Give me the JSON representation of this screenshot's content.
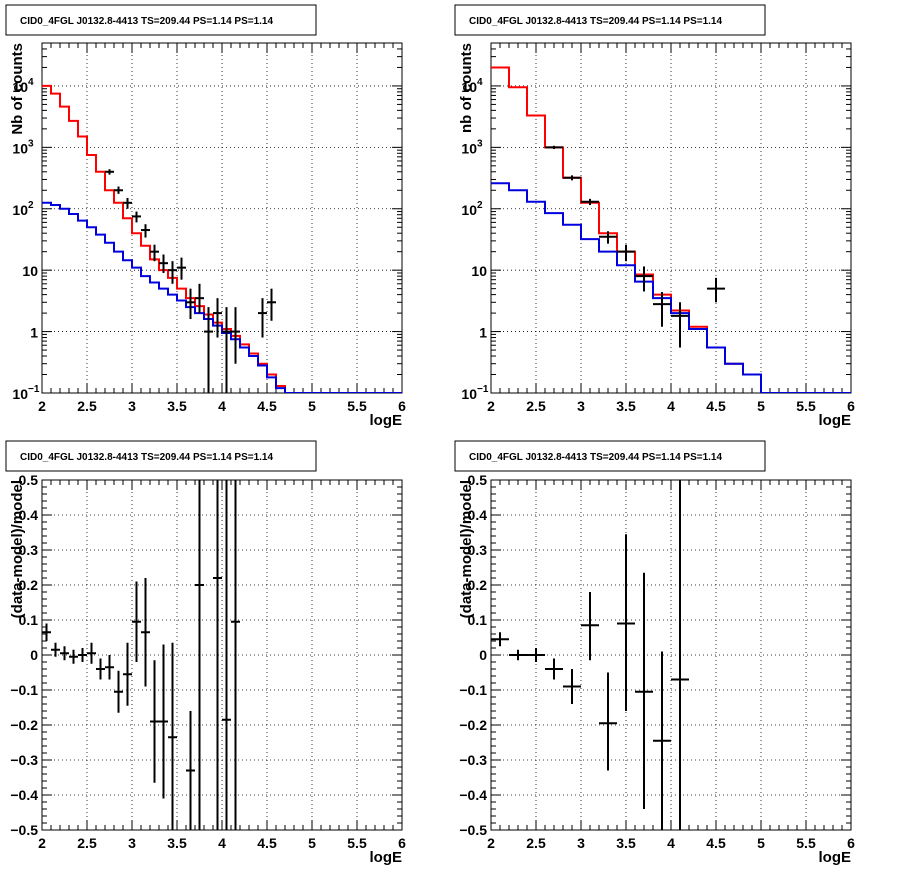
{
  "chart_data": [
    {
      "type": "line",
      "title": "CID0_4FGL J0132.8-4413 TS=209.44 PS=1.14 PS=1.14",
      "xlabel": "logE",
      "ylabel": "Nb of counts",
      "xlim": [
        2,
        6
      ],
      "ylim": [
        0.1,
        50000
      ],
      "yscale": "log",
      "grid": true,
      "x_ticks": [
        "2",
        "2.5",
        "3",
        "3.5",
        "4",
        "4.5",
        "5",
        "5.5",
        "6"
      ],
      "y_ticks": [
        {
          "value": 0.1,
          "label": "10",
          "exp": "−1"
        },
        {
          "value": 1,
          "label": "1",
          "exp": ""
        },
        {
          "value": 10,
          "label": "10",
          "exp": ""
        },
        {
          "value": 100,
          "label": "10",
          "exp": "2"
        },
        {
          "value": 1000,
          "label": "10",
          "exp": "3"
        },
        {
          "value": 10000,
          "label": "10",
          "exp": "4"
        }
      ],
      "step_x": [
        2.0,
        2.1,
        2.2,
        2.3,
        2.4,
        2.5,
        2.6,
        2.7,
        2.8,
        2.9,
        3.0,
        3.1,
        3.2,
        3.3,
        3.4,
        3.5,
        3.6,
        3.7,
        3.8,
        3.9,
        4.0,
        4.1,
        4.2,
        4.3,
        4.4,
        4.5,
        4.6,
        4.7,
        4.8,
        4.9,
        5.0,
        5.1,
        5.2,
        5.3,
        5.4,
        5.5,
        5.6,
        5.7,
        5.8,
        5.9,
        6.0
      ],
      "series": [
        {
          "color": "#ff0000",
          "kind": "step",
          "values": [
            10000,
            7500,
            4600,
            2700,
            1500,
            750,
            400,
            200,
            125,
            70,
            40,
            25,
            15,
            10,
            7.5,
            5,
            3.5,
            2.6,
            1.9,
            1.4,
            1.1,
            0.85,
            0.62,
            0.44,
            0.3,
            0.2,
            0.13,
            0.1,
            0.1,
            0.1,
            0.1,
            0.1,
            0.1,
            0.1,
            0.1,
            0.1,
            0.1,
            0.1,
            0.1,
            0.1
          ]
        },
        {
          "color": "#0000dd",
          "kind": "step",
          "values": [
            125,
            115,
            100,
            82,
            64,
            50,
            38,
            28,
            20,
            14.5,
            11,
            8,
            6.3,
            5,
            4,
            3.2,
            2.5,
            2,
            1.6,
            1.25,
            0.95,
            0.75,
            0.55,
            0.4,
            0.28,
            0.18,
            0.12,
            0.1,
            0.1,
            0.1,
            0.1,
            0.1,
            0.1,
            0.1,
            0.1,
            0.1,
            0.1,
            0.1,
            0.1,
            0.1
          ]
        },
        {
          "color": "#000000",
          "kind": "points",
          "xerr": 0.05,
          "x": [
            2.75,
            2.85,
            2.95,
            3.05,
            3.15,
            3.25,
            3.35,
            3.45,
            3.55,
            3.65,
            3.75,
            3.85,
            3.95,
            4.05,
            4.15,
            4.45,
            4.55
          ],
          "y": [
            400,
            200,
            125,
            75,
            45,
            20,
            13,
            10,
            11,
            3,
            3.5,
            1,
            2,
            1,
            1,
            2,
            3
          ],
          "lo": [
            360,
            175,
            100,
            60,
            34,
            14,
            9,
            6,
            7,
            1.6,
            2,
            0.1,
            0.8,
            0.1,
            0.3,
            0.8,
            1.5
          ],
          "hi": [
            440,
            230,
            150,
            90,
            56,
            26,
            18,
            14,
            16,
            5,
            6,
            2.5,
            3.5,
            2.5,
            2.5,
            3.5,
            5
          ]
        }
      ]
    },
    {
      "type": "line",
      "title": "CID0_4FGL J0132.8-4413 TS=209.44 PS=1.14 PS=1.14",
      "xlabel": "logE",
      "ylabel": "nb of counts",
      "xlim": [
        2,
        6
      ],
      "ylim": [
        0.1,
        50000
      ],
      "yscale": "log",
      "grid": true,
      "x_ticks": [
        "2",
        "2.5",
        "3",
        "3.5",
        "4",
        "4.5",
        "5",
        "5.5",
        "6"
      ],
      "y_ticks": [
        {
          "value": 0.1,
          "label": "10",
          "exp": "−1"
        },
        {
          "value": 1,
          "label": "1",
          "exp": ""
        },
        {
          "value": 10,
          "label": "10",
          "exp": ""
        },
        {
          "value": 100,
          "label": "10",
          "exp": "2"
        },
        {
          "value": 1000,
          "label": "10",
          "exp": "3"
        },
        {
          "value": 10000,
          "label": "10",
          "exp": "4"
        }
      ],
      "step_x": [
        2.0,
        2.2,
        2.4,
        2.6,
        2.8,
        3.0,
        3.2,
        3.4,
        3.6,
        3.8,
        4.0,
        4.2,
        4.4,
        4.6,
        4.8,
        5.0,
        5.2,
        5.4,
        5.6,
        5.8,
        6.0
      ],
      "series": [
        {
          "color": "#ff0000",
          "kind": "step",
          "values": [
            20000,
            9500,
            3300,
            1000,
            320,
            125,
            40,
            20,
            8.5,
            4,
            2.2,
            1.2,
            0.55,
            0.3,
            0.2,
            0.1,
            0.1,
            0.1,
            0.1,
            0.1
          ]
        },
        {
          "color": "#0000dd",
          "kind": "step",
          "values": [
            260,
            200,
            130,
            85,
            55,
            32,
            20,
            12,
            6.5,
            3.5,
            2,
            1.1,
            0.55,
            0.3,
            0.2,
            0.1,
            0.1,
            0.1,
            0.1,
            0.1
          ]
        },
        {
          "color": "#000000",
          "kind": "points",
          "xerr": 0.1,
          "x": [
            2.7,
            2.9,
            3.1,
            3.3,
            3.5,
            3.7,
            3.9,
            4.1,
            4.5
          ],
          "y": [
            1000,
            320,
            130,
            35,
            20,
            8,
            2.8,
            1.8,
            5
          ],
          "lo": [
            940,
            290,
            115,
            27,
            14,
            4.5,
            1.2,
            0.55,
            3
          ],
          "hi": [
            1060,
            350,
            145,
            43,
            26,
            11.5,
            4.4,
            3,
            7.5
          ]
        }
      ]
    },
    {
      "type": "scatter",
      "title": "CID0_4FGL J0132.8-4413 TS=209.44 PS=1.14 PS=1.14",
      "xlabel": "logE",
      "ylabel": "(data-model)/model",
      "xlim": [
        2,
        6
      ],
      "ylim": [
        -0.5,
        0.5
      ],
      "grid": true,
      "x_ticks": [
        "2",
        "2.5",
        "3",
        "3.5",
        "4",
        "4.5",
        "5",
        "5.5",
        "6"
      ],
      "y_ticks": [
        "−0.5",
        "−0.4",
        "−0.3",
        "−0.2",
        "−0.1",
        "0",
        "0.1",
        "0.2",
        "0.3",
        "0.4",
        "0.5"
      ],
      "series": [
        {
          "color": "#000000",
          "kind": "points",
          "xerr": 0.05,
          "x": [
            2.05,
            2.15,
            2.25,
            2.35,
            2.45,
            2.55,
            2.65,
            2.75,
            2.85,
            2.95,
            3.05,
            3.15,
            3.25,
            3.35,
            3.45,
            3.65,
            3.75,
            3.95,
            4.05,
            4.15
          ],
          "y": [
            0.065,
            0.015,
            0.005,
            -0.005,
            0.0,
            0.005,
            -0.04,
            -0.035,
            -0.105,
            -0.055,
            0.095,
            0.065,
            -0.19,
            -0.19,
            -0.235,
            -0.33,
            0.2,
            0.22,
            -0.185,
            0.095
          ],
          "lo": [
            0.04,
            -0.005,
            -0.015,
            -0.025,
            -0.02,
            -0.025,
            -0.07,
            -0.07,
            -0.165,
            -0.145,
            -0.02,
            -0.09,
            -0.365,
            -0.41,
            -0.5,
            -0.5,
            -0.5,
            -0.5,
            -0.5,
            -0.5
          ],
          "hi": [
            0.09,
            0.035,
            0.025,
            0.015,
            0.02,
            0.035,
            -0.01,
            0.0,
            -0.045,
            0.035,
            0.21,
            0.22,
            -0.015,
            0.03,
            0.035,
            -0.16,
            0.5,
            0.5,
            0.5,
            0.5
          ]
        }
      ]
    },
    {
      "type": "scatter",
      "title": "CID0_4FGL J0132.8-4413 TS=209.44 PS=1.14 PS=1.14",
      "xlabel": "logE",
      "ylabel": "(data-model)/model",
      "xlim": [
        2,
        6
      ],
      "ylim": [
        -0.5,
        0.5
      ],
      "grid": true,
      "x_ticks": [
        "2",
        "2.5",
        "3",
        "3.5",
        "4",
        "4.5",
        "5",
        "5.5",
        "6"
      ],
      "y_ticks": [
        "−0.5",
        "−0.4",
        "−0.3",
        "−0.2",
        "−0.1",
        "0",
        "0.1",
        "0.2",
        "0.3",
        "0.4",
        "0.5"
      ],
      "series": [
        {
          "color": "#000000",
          "kind": "points",
          "xerr": 0.1,
          "x": [
            2.1,
            2.3,
            2.5,
            2.7,
            2.9,
            3.1,
            3.3,
            3.5,
            3.7,
            3.9,
            4.1
          ],
          "y": [
            0.045,
            0.0,
            0.0,
            -0.04,
            -0.09,
            0.085,
            -0.195,
            0.09,
            -0.105,
            -0.245,
            -0.07
          ],
          "lo": [
            0.025,
            -0.015,
            -0.02,
            -0.07,
            -0.14,
            -0.015,
            -0.33,
            -0.16,
            -0.44,
            -0.5,
            -0.5
          ],
          "hi": [
            0.065,
            0.015,
            0.02,
            -0.01,
            -0.04,
            0.18,
            -0.05,
            0.345,
            0.235,
            0.01,
            0.5
          ]
        }
      ]
    }
  ]
}
